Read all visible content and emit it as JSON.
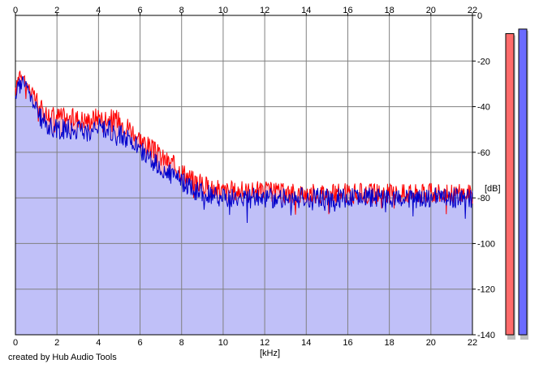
{
  "credit_text": "created by Hub Audio Tools",
  "chart_data": {
    "type": "area",
    "xlabel": "[kHz]",
    "ylabel": "[dB]",
    "xlim": [
      0,
      22
    ],
    "ylim": [
      -140,
      0
    ],
    "x_ticks": [
      0,
      2,
      4,
      6,
      8,
      10,
      12,
      14,
      16,
      18,
      20,
      22
    ],
    "y_ticks": [
      0,
      -20,
      -40,
      -60,
      -80,
      -100,
      -120,
      -140
    ],
    "grid": true,
    "series": [
      {
        "color": "#ff0000",
        "fill": "#f7b8c4",
        "x": [
          0,
          0.2,
          0.4,
          0.6,
          0.8,
          1,
          1.2,
          1.5,
          2,
          2.5,
          3,
          3.5,
          4,
          4.5,
          5,
          5.5,
          6,
          6.5,
          7,
          7.5,
          8,
          8.5,
          9,
          9.5,
          10,
          11,
          12,
          13,
          14,
          15,
          16,
          17,
          18,
          19,
          20,
          21,
          22
        ],
        "values": [
          -34,
          -24,
          -27,
          -31,
          -34,
          -37,
          -41,
          -43,
          -44,
          -45,
          -45,
          -46,
          -44,
          -45,
          -46,
          -49,
          -54,
          -58,
          -62,
          -65,
          -68,
          -72,
          -74,
          -76,
          -77,
          -77,
          -77,
          -78,
          -78,
          -78,
          -78,
          -78,
          -78,
          -78,
          -78,
          -78,
          -78
        ]
      },
      {
        "color": "#0000cc",
        "fill": "#c0c0f8",
        "x": [
          0,
          0.2,
          0.4,
          0.6,
          0.8,
          1,
          1.2,
          1.5,
          2,
          2.5,
          3,
          3.5,
          4,
          4.5,
          5,
          5.5,
          6,
          6.5,
          7,
          7.5,
          8,
          8.5,
          9,
          9.5,
          10,
          11,
          12,
          13,
          14,
          15,
          16,
          17,
          18,
          19,
          20,
          21,
          22
        ],
        "values": [
          -38,
          -26,
          -29,
          -33,
          -37,
          -41,
          -45,
          -48,
          -50,
          -50,
          -50,
          -51,
          -49,
          -50,
          -52,
          -55,
          -59,
          -63,
          -67,
          -70,
          -73,
          -76,
          -78,
          -79,
          -80,
          -80,
          -80,
          -80,
          -80,
          -80,
          -80,
          -80,
          -80,
          -80,
          -80,
          -80,
          -80
        ]
      }
    ],
    "level_meters": [
      {
        "color": "#ff6b6b",
        "value_db": -8
      },
      {
        "color": "#6b6bff",
        "value_db": -6
      }
    ]
  }
}
